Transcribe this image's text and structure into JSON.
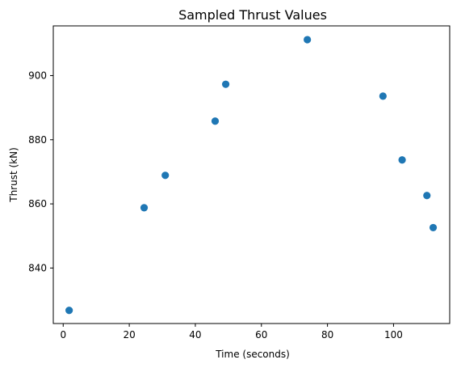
{
  "chart_data": {
    "type": "scatter",
    "title": "Sampled Thrust Values",
    "xlabel": "Time (seconds)",
    "ylabel": "Thrust (kN)",
    "xlim": [
      -3.0,
      117.0
    ],
    "ylim": [
      822.7,
      915.5
    ],
    "xticks": [
      0,
      20,
      40,
      60,
      80,
      100
    ],
    "yticks": [
      840,
      860,
      880,
      900
    ],
    "grid": false,
    "marker_color": "#1f77b4",
    "series": [
      {
        "x": [
          1.8,
          24.5,
          30.9,
          46.0,
          49.2,
          73.9,
          96.8,
          102.6,
          110.1,
          112.0
        ],
        "y": [
          826.8,
          858.8,
          868.9,
          885.8,
          897.3,
          911.2,
          893.6,
          873.7,
          862.6,
          852.6
        ]
      }
    ]
  }
}
